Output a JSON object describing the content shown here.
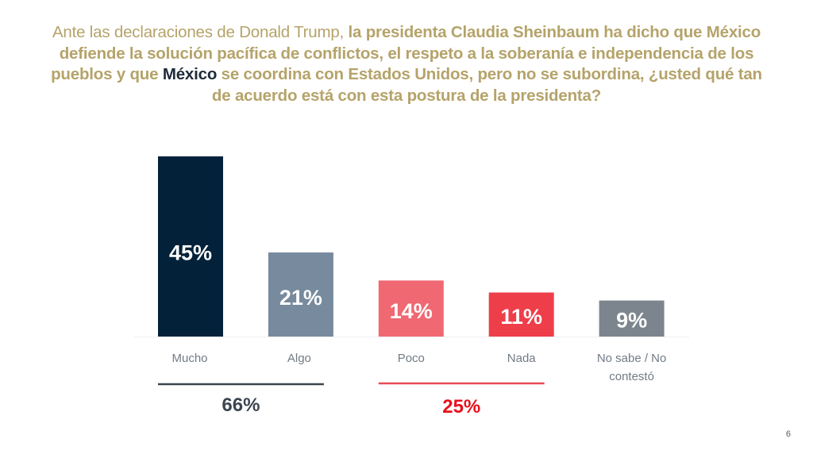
{
  "title": {
    "segments": [
      {
        "text": "Ante las declaraciones de Donald Trump, ",
        "style": "normal"
      },
      {
        "text": "la presidenta Claudia Sheinbaum ha dicho que México defiende la solución pacífica de conflictos, el respeto a la soberanía e independencia de los pueblos y que ",
        "style": "bold"
      },
      {
        "text": "México",
        "style": "accent"
      },
      {
        "text": " se coordina con Estados Unidos, pero no se subordina, ¿usted qué tan de acuerdo está con esta postura de la presidenta?",
        "style": "bold"
      }
    ]
  },
  "chart_data": {
    "type": "bar",
    "title": "Ante las declaraciones de Donald Trump, la presidenta Claudia Sheinbaum ha dicho que México defiende la solución pacífica de conflictos, el respeto a la soberanía e independencia de los pueblos y que México se coordina con Estados Unidos, pero no se subordina, ¿usted qué tan de acuerdo está con esta postura de la presidenta?",
    "xlabel": "",
    "ylabel": "",
    "ylim": [
      0,
      45
    ],
    "grid": false,
    "categories": [
      "Mucho",
      "Algo",
      "Poco",
      "Nada",
      "No sabe / No contestó"
    ],
    "category_lines": [
      [
        "Mucho"
      ],
      [
        "Algo"
      ],
      [
        "Poco"
      ],
      [
        "Nada"
      ],
      [
        "No sabe / No",
        "contestó"
      ]
    ],
    "values": [
      45,
      21,
      14,
      11,
      9
    ],
    "value_labels": [
      "45%",
      "21%",
      "14%",
      "11%",
      "9%"
    ],
    "colors": [
      "#03223a",
      "#778a9e",
      "#f06872",
      "#ee3e4a",
      "#7c858d"
    ],
    "groups": [
      {
        "label": "66%",
        "members": [
          "Mucho",
          "Algo"
        ],
        "color": "#3b4550",
        "line_color": "#3b4550"
      },
      {
        "label": "25%",
        "members": [
          "Poco",
          "Nada"
        ],
        "color": "#e8101c",
        "line_color": "#ea4a55"
      }
    ]
  },
  "footer": {
    "page_number": "6"
  }
}
